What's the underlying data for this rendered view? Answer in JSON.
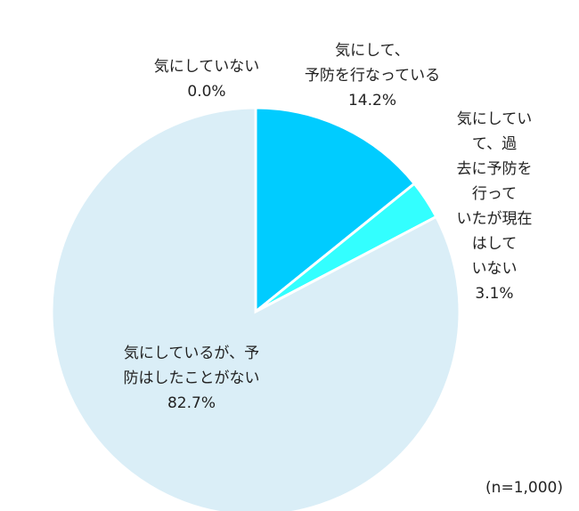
{
  "chart_data": {
    "type": "pie",
    "categories": [
      "気にしていない",
      "気にして、\n予防を行なっている",
      "気にしていて、過\n去に予防を行って\nいたが現在はして\nいない",
      "気にしているが、予\n防はしたことがない"
    ],
    "values": [
      0.0,
      14.2,
      3.1,
      82.7
    ],
    "value_labels": [
      "0.0%",
      "14.2%",
      "3.1%",
      "82.7%"
    ],
    "colors": [
      "#9ed8f0",
      "#00ccff",
      "#33ffff",
      "#daeef7"
    ],
    "note": "(n=1,000)"
  }
}
